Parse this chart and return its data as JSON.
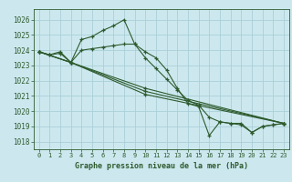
{
  "title": "Graphe pression niveau de la mer (hPa)",
  "bg_color": "#cce8ee",
  "grid_color": "#aacfd8",
  "line_color": "#2d5a2d",
  "xlim": [
    -0.5,
    23.5
  ],
  "ylim": [
    1017.5,
    1026.7
  ],
  "yticks": [
    1018,
    1019,
    1020,
    1021,
    1022,
    1023,
    1024,
    1025,
    1026
  ],
  "ytick_labels": [
    "1018",
    "1019",
    "1020",
    "1021",
    "1022",
    "1023",
    "1024",
    "1025",
    "1026"
  ],
  "xticks": [
    0,
    1,
    2,
    3,
    4,
    5,
    6,
    7,
    8,
    9,
    10,
    11,
    12,
    13,
    14,
    15,
    16,
    17,
    18,
    19,
    20,
    21,
    22,
    23
  ],
  "series": [
    {
      "x": [
        0,
        1,
        2,
        3,
        4,
        5,
        6,
        7,
        8,
        9,
        10,
        11,
        12,
        13,
        14,
        15,
        16,
        17,
        18,
        19,
        20,
        21,
        22,
        23
      ],
      "y": [
        1023.9,
        1023.7,
        1023.8,
        1023.2,
        1024.7,
        1024.9,
        1025.3,
        1025.6,
        1026.0,
        1024.4,
        1023.9,
        1023.5,
        1022.7,
        1021.5,
        1020.5,
        1020.3,
        1018.4,
        1019.3,
        1019.2,
        1019.2,
        1018.6,
        1019.0,
        1019.1,
        1019.2
      ]
    },
    {
      "x": [
        0,
        1,
        2,
        3,
        4,
        5,
        6,
        7,
        8,
        9,
        10,
        11,
        12,
        13,
        14,
        15,
        16,
        17,
        18,
        19,
        20,
        21,
        22,
        23
      ],
      "y": [
        1023.9,
        1023.7,
        1023.9,
        1023.2,
        1024.0,
        1024.1,
        1024.2,
        1024.3,
        1024.4,
        1024.4,
        1023.5,
        1022.8,
        1022.1,
        1021.4,
        1020.7,
        1020.4,
        1019.6,
        1019.3,
        1019.2,
        1019.1,
        1018.6,
        1019.0,
        1019.1,
        1019.2
      ]
    },
    {
      "x": [
        0,
        3,
        10,
        23
      ],
      "y": [
        1023.9,
        1023.2,
        1021.5,
        1019.2
      ]
    },
    {
      "x": [
        0,
        3,
        10,
        23
      ],
      "y": [
        1023.9,
        1023.2,
        1021.3,
        1019.2
      ]
    },
    {
      "x": [
        0,
        3,
        10,
        23
      ],
      "y": [
        1023.9,
        1023.2,
        1021.1,
        1019.2
      ]
    }
  ]
}
